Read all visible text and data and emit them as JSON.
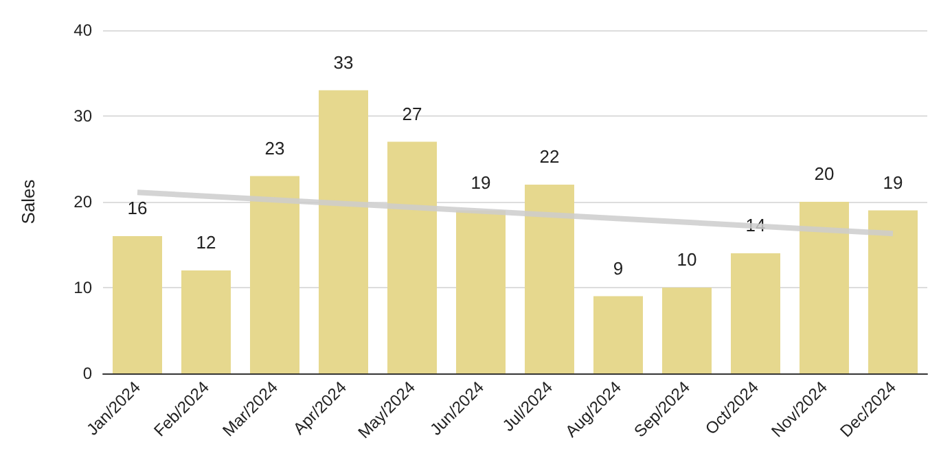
{
  "chart_data": {
    "type": "bar",
    "ylabel": "Sales",
    "categories": [
      "Jan/2024",
      "Feb/2024",
      "Mar/2024",
      "Apr/2024",
      "May/2024",
      "Jun/2024",
      "Jul/2024",
      "Aug/2024",
      "Sep/2024",
      "Oct/2024",
      "Nov/2024",
      "Dec/2024"
    ],
    "series": [
      {
        "color": "#e6d88e",
        "values": [
          16,
          12,
          23,
          33,
          27,
          19,
          22,
          9,
          10,
          14,
          20,
          19
        ],
        "value_labels": [
          "16",
          "12",
          "23",
          "33",
          "27",
          "19",
          "22",
          "9",
          "10",
          "14",
          "20",
          "19"
        ]
      },
      {
        "type": "line",
        "color": "#cccccc",
        "x": [
          "Jan/2024",
          "Dec/2024"
        ],
        "values": [
          21.1,
          16.3
        ]
      }
    ],
    "ylim": [
      0,
      40
    ],
    "yticks": [
      0,
      10,
      20,
      30,
      40
    ],
    "grid": "y",
    "marker": "none",
    "line_style": "solid"
  }
}
